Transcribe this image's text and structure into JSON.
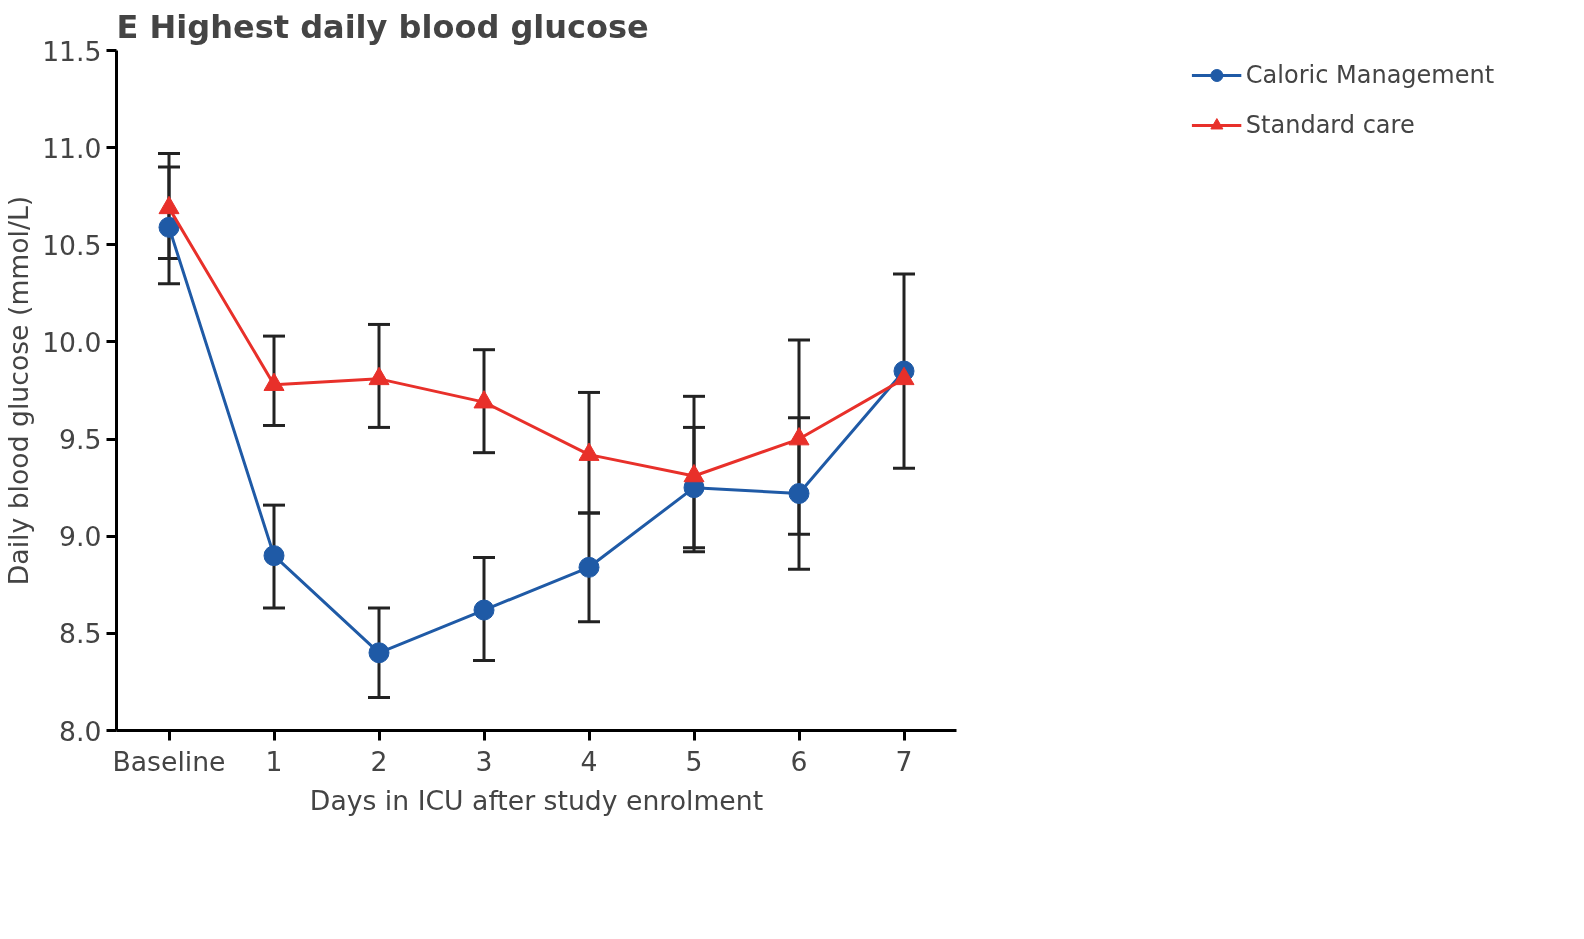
{
  "chart_data": {
    "type": "line",
    "title": "E  Highest daily blood glucose",
    "xlabel": "Days in ICU after study enrolment",
    "ylabel": "Daily blood glucose (mmol/L)",
    "categories": [
      "Baseline",
      "1",
      "2",
      "3",
      "4",
      "5",
      "6",
      "7"
    ],
    "series": [
      {
        "name": "Caloric Management",
        "color": "#1f5aa6",
        "marker": "circle",
        "values": [
          10.59,
          8.9,
          8.4,
          8.62,
          8.84,
          9.25,
          9.22,
          9.85
        ],
        "errors": [
          [
            10.3,
            10.9
          ],
          [
            8.63,
            9.16
          ],
          [
            8.17,
            8.63
          ],
          [
            8.36,
            8.89
          ],
          [
            8.56,
            9.12
          ],
          [
            8.94,
            9.56
          ],
          [
            8.83,
            9.61
          ],
          [
            9.35,
            10.35
          ]
        ]
      },
      {
        "name": "Standard care",
        "color": "#e8302a",
        "marker": "triangle",
        "values": [
          10.69,
          9.78,
          9.81,
          9.69,
          9.42,
          9.31,
          9.5,
          9.81
        ],
        "errors": [
          [
            10.43,
            10.97
          ],
          [
            9.57,
            10.03
          ],
          [
            9.56,
            10.09
          ],
          [
            9.43,
            9.96
          ],
          [
            9.12,
            9.74
          ],
          [
            8.92,
            9.72
          ],
          [
            9.01,
            10.01
          ],
          null
        ]
      }
    ],
    "ylim": [
      8.0,
      11.5
    ],
    "yticks": [
      {
        "value": 8.0,
        "label": "8.0"
      },
      {
        "value": 8.5,
        "label": "8.5"
      },
      {
        "value": 9.0,
        "label": "9.0"
      },
      {
        "value": 9.5,
        "label": "9.5"
      },
      {
        "value": 10.0,
        "label": "10.0"
      },
      {
        "value": 10.5,
        "label": "10.5"
      },
      {
        "value": 11.0,
        "label": "11.0"
      },
      {
        "value": 11.5,
        "label": "11.5"
      }
    ],
    "grid": false,
    "legend": "right",
    "line_style": "solid"
  }
}
